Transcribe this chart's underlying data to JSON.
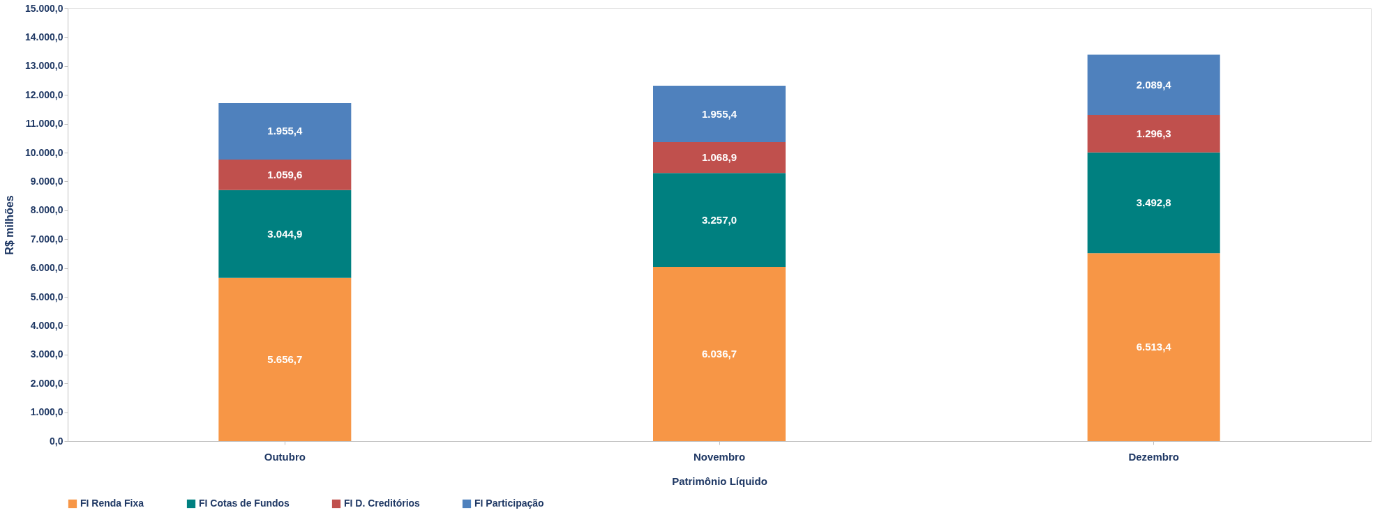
{
  "chart_data": {
    "type": "bar",
    "stacked": true,
    "xlabel": "Patrimônio Líquido",
    "ylabel": "R$ milhões",
    "categories": [
      "Outubro",
      "Novembro",
      "Dezembro"
    ],
    "series": [
      {
        "name": "FI Renda Fixa",
        "color": "#f79646",
        "values": [
          5656.7,
          6036.7,
          6513.4
        ],
        "value_labels": [
          "5.656,7",
          "6.036,7",
          "6.513,4"
        ]
      },
      {
        "name": "FI Cotas de Fundos",
        "color": "#008080",
        "values": [
          3044.9,
          3257.0,
          3492.8
        ],
        "value_labels": [
          "3.044,9",
          "3.257,0",
          "3.492,8"
        ]
      },
      {
        "name": "FI D. Creditórios",
        "color": "#c0504d",
        "values": [
          1059.6,
          1068.9,
          1296.3
        ],
        "value_labels": [
          "1.059,6",
          "1.068,9",
          "1.296,3"
        ]
      },
      {
        "name": "FI Participação",
        "color": "#4f81bd",
        "values": [
          1955.4,
          1955.4,
          2089.4
        ],
        "value_labels": [
          "1.955,4",
          "1.955,4",
          "2.089,4"
        ]
      }
    ],
    "ylim": [
      0,
      15000
    ],
    "yticks": [
      {
        "value": 0,
        "label": "0,0"
      },
      {
        "value": 1000,
        "label": "1.000,0"
      },
      {
        "value": 2000,
        "label": "2.000,0"
      },
      {
        "value": 3000,
        "label": "3.000,0"
      },
      {
        "value": 4000,
        "label": "4.000,0"
      },
      {
        "value": 5000,
        "label": "5.000,0"
      },
      {
        "value": 6000,
        "label": "6.000,0"
      },
      {
        "value": 7000,
        "label": "7.000,0"
      },
      {
        "value": 8000,
        "label": "8.000,0"
      },
      {
        "value": 9000,
        "label": "9.000,0"
      },
      {
        "value": 10000,
        "label": "10.000,0"
      },
      {
        "value": 11000,
        "label": "11.000,0"
      },
      {
        "value": 12000,
        "label": "12.000,0"
      },
      {
        "value": 13000,
        "label": "13.000,0"
      },
      {
        "value": 14000,
        "label": "14.000,0"
      },
      {
        "value": 15000,
        "label": "15.000,0"
      }
    ],
    "grid": false,
    "legend": "bottom"
  }
}
